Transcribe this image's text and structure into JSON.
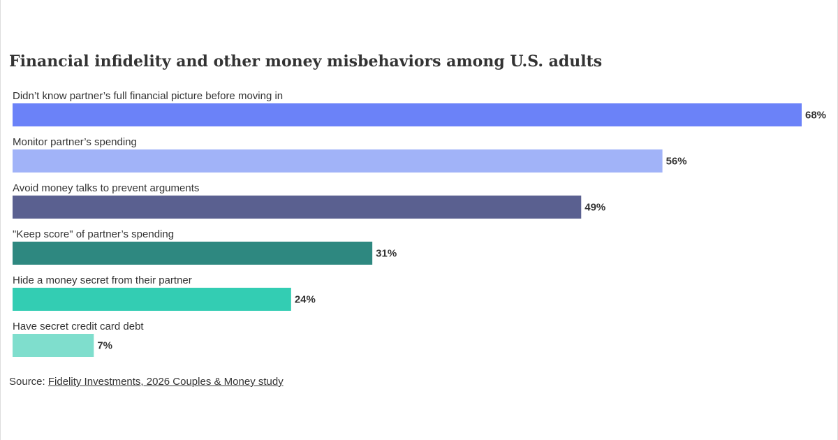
{
  "chart_data": {
    "type": "bar",
    "orientation": "horizontal",
    "title": "Financial infidelity and other money misbehaviors among U.S. adults",
    "categories": [
      "Didn’t know partner’s full financial picture before moving in",
      "Monitor partner’s spending",
      "Avoid money talks to prevent arguments",
      "\"Keep score\" of partner’s spending",
      "Hide a money secret from their partner",
      "Have secret credit card debt"
    ],
    "values": [
      68,
      56,
      49,
      31,
      24,
      7
    ],
    "value_labels": [
      "68%",
      "56%",
      "49%",
      "31%",
      "24%",
      "7%"
    ],
    "colors": [
      "#6b82f8",
      "#a1b3f8",
      "#5a6090",
      "#2e8880",
      "#33cdb3",
      "#7fdecd"
    ],
    "source_label": "Source:",
    "source": "Fidelity Investments, 2026 Couples & Money study"
  }
}
